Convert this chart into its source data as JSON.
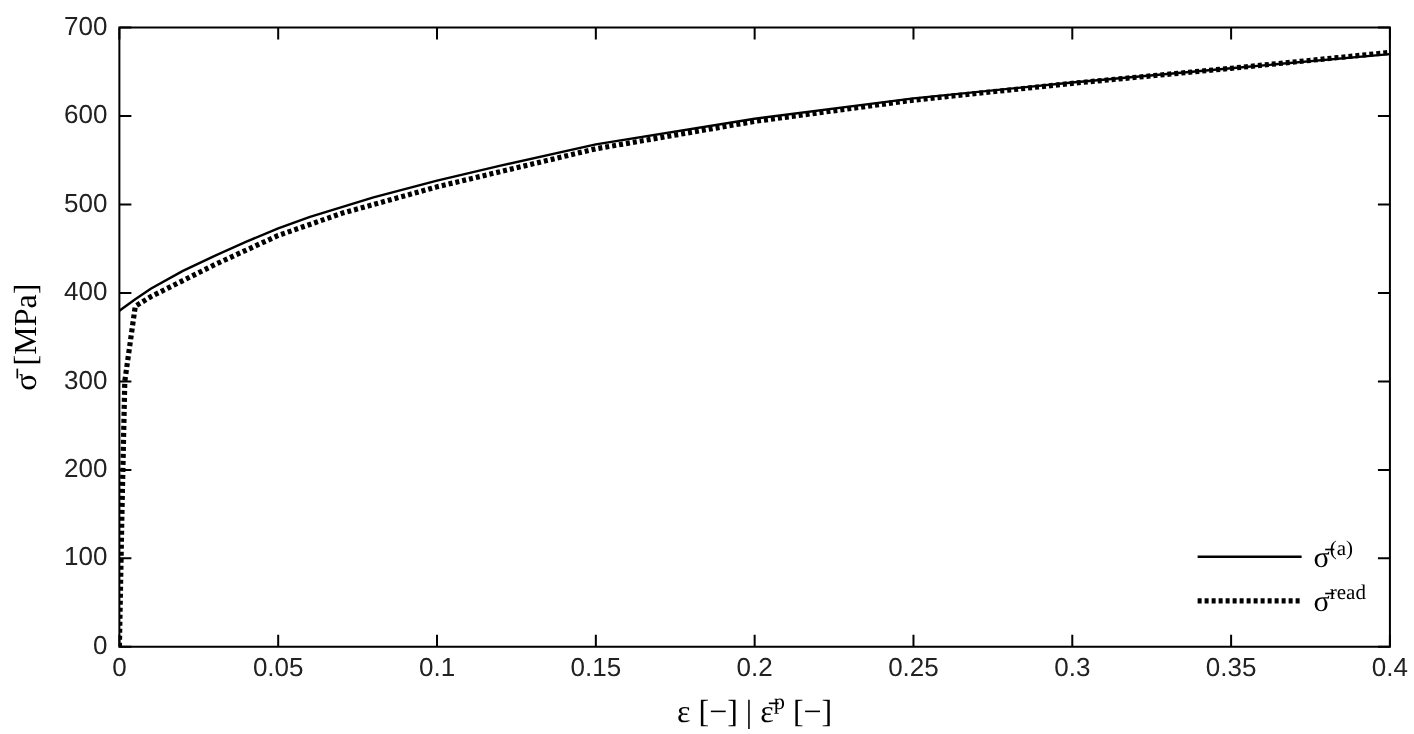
{
  "chart_data": {
    "type": "line",
    "xlabel": "ε [−] | ε̄$^{p}$ [−]",
    "ylabel": "σ̄ [MPa]",
    "xlim": [
      0,
      0.4
    ],
    "xticks": [
      0,
      0.05,
      0.1,
      0.15,
      0.2,
      0.25,
      0.3,
      0.35,
      0.4
    ],
    "ylim": [
      0,
      700
    ],
    "yticks": [
      0,
      100,
      200,
      300,
      400,
      500,
      600,
      700
    ],
    "legend": "bottom right",
    "grid": false,
    "marker": "none",
    "series": [
      {
        "name": "σ̄$^{(a)}$",
        "color": "#000000",
        "line_style": "solid",
        "x": [
          0,
          0.005,
          0.01,
          0.02,
          0.03,
          0.04,
          0.05,
          0.06,
          0.07,
          0.08,
          0.1,
          0.12,
          0.15,
          0.2,
          0.25,
          0.3,
          0.35,
          0.4
        ],
        "values": [
          380,
          393,
          405,
          425,
          442,
          458,
          473,
          486,
          497,
          508,
          527,
          544,
          568,
          597,
          620,
          638,
          654,
          670
        ]
      },
      {
        "name": "σ̄$^{read}$",
        "color": "#000000",
        "line_style": "dotted",
        "x": [
          0,
          0.0008,
          0.0017,
          0.005,
          0.01,
          0.02,
          0.03,
          0.05,
          0.07,
          0.1,
          0.15,
          0.2,
          0.25,
          0.3,
          0.35,
          0.4
        ],
        "values": [
          0,
          150,
          300,
          385,
          396,
          414,
          432,
          465,
          490,
          520,
          563,
          594,
          618,
          637,
          654,
          672
        ]
      }
    ]
  }
}
